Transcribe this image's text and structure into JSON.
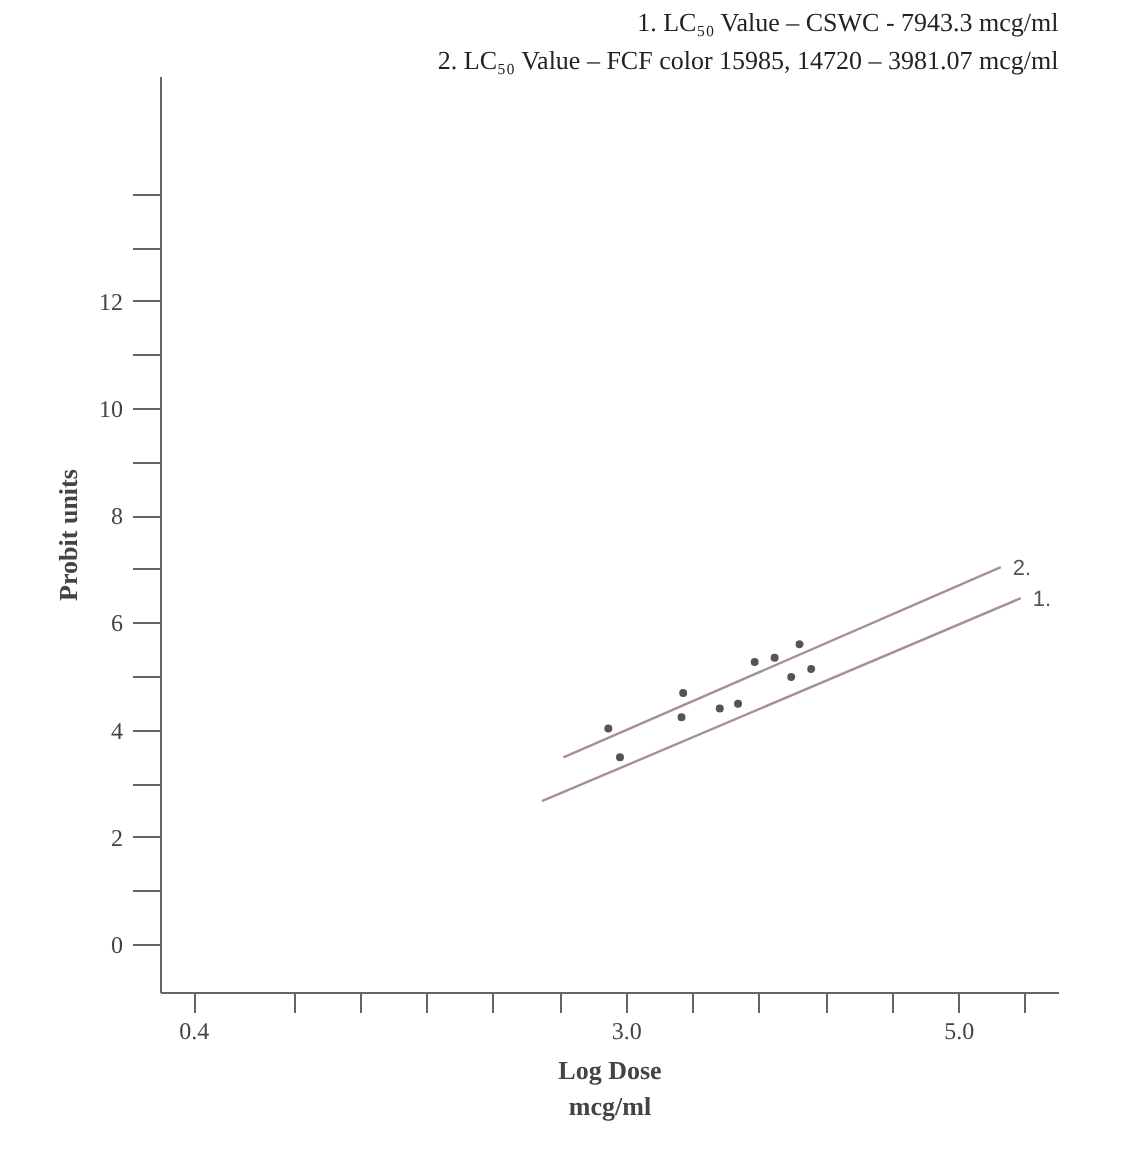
{
  "chart_data": {
    "type": "scatter",
    "xlabel": "Log Dose\nmcg/ml",
    "ylabel": "Probit units",
    "annotations": [
      "1. LC₅₀ Value – CSWC - 7943.3 mcg/ml",
      "2. LC₅₀ Value – FCF color 15985, 14720 – 3981.07 mcg/ml"
    ],
    "series": [
      {
        "color": "#555555",
        "x": [
          2.96,
          3.33,
          3.56,
          3.67,
          3.99,
          4.11
        ],
        "values": [
          3.5,
          4.25,
          4.41,
          4.5,
          5.0,
          5.15
        ]
      },
      {
        "color": "#555555",
        "x": [
          2.89,
          3.34,
          3.77,
          3.89,
          4.04
        ],
        "values": [
          4.04,
          4.7,
          5.28,
          5.36,
          5.61
        ]
      },
      {
        "type": "line",
        "name": "1.",
        "marker": "none",
        "color": "#a89090",
        "x": [
          2.49,
          5.37
        ],
        "values": [
          2.68,
          6.47
        ]
      },
      {
        "type": "line",
        "name": "2.",
        "marker": "none",
        "color": "#a89090",
        "x": [
          2.62,
          5.25
        ],
        "values": [
          3.5,
          7.05
        ]
      }
    ],
    "marker": "circle",
    "grid": false,
    "xlim": [
      0.2,
      5.6
    ],
    "ylim": [
      -0.9,
      16.2
    ],
    "xticks": [
      0.4,
      {
        "value": 1.0,
        "label": null
      },
      {
        "value": 1.4,
        "label": null
      },
      {
        "value": 1.8,
        "label": null
      },
      {
        "value": 2.2,
        "label": null
      },
      {
        "value": 2.6,
        "label": null
      },
      {
        "value": 3,
        "label": "3.0"
      },
      {
        "value": 3.4,
        "label": null
      },
      {
        "value": 3.8,
        "label": null
      },
      {
        "value": 4.2,
        "label": null
      },
      {
        "value": 4.6,
        "label": null
      },
      {
        "value": 5,
        "label": "5.0"
      },
      {
        "value": 5.4,
        "label": null
      }
    ],
    "yticks": [
      0,
      {
        "value": 1,
        "label": null
      },
      2,
      {
        "value": 3,
        "label": null
      },
      4,
      {
        "value": 5,
        "label": null
      },
      6,
      {
        "value": 7,
        "label": null
      },
      8,
      {
        "value": 9,
        "label": null
      },
      10,
      {
        "value": 11,
        "label": null
      },
      12,
      {
        "value": 13,
        "label": null
      },
      {
        "value": 14,
        "label": null
      }
    ]
  }
}
